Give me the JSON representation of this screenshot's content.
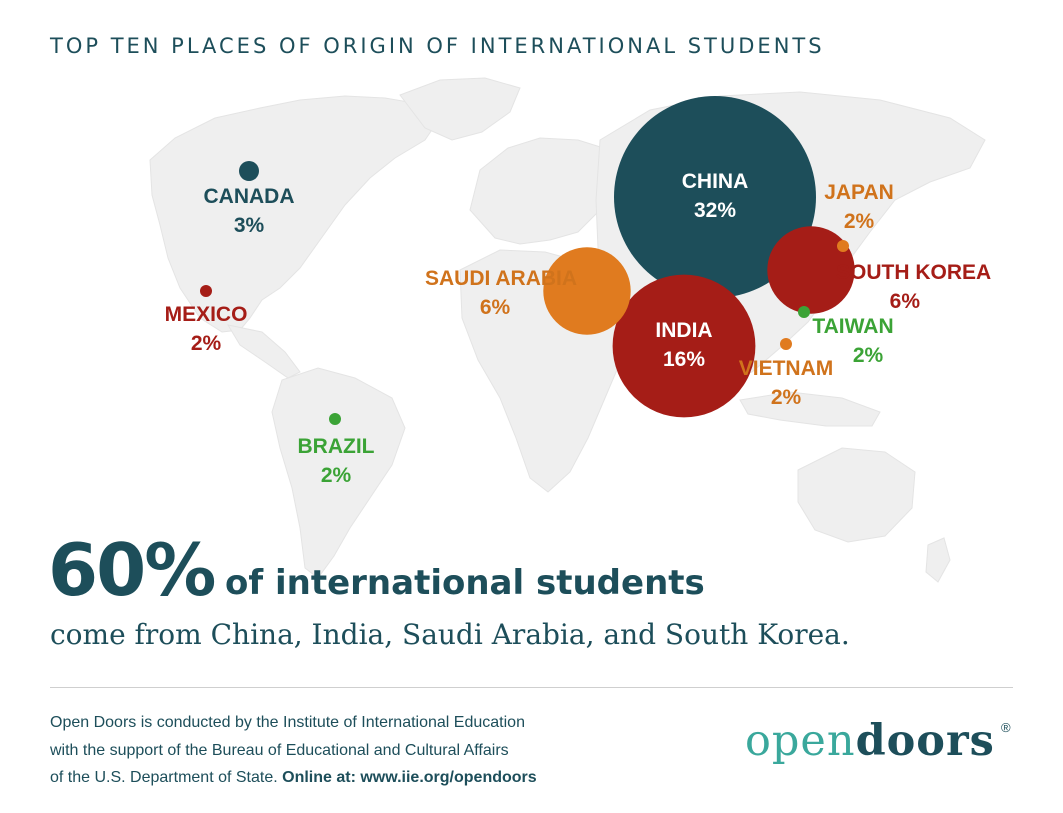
{
  "header": {
    "title": "TOP TEN PLACES OF ORIGIN OF INTERNATIONAL STUDENTS"
  },
  "map_data": {
    "places": [
      {
        "id": "china",
        "name": "CHINA",
        "percent": "32%",
        "value": 32,
        "color": "#1d4e5a"
      },
      {
        "id": "india",
        "name": "INDIA",
        "percent": "16%",
        "value": 16,
        "color": "#a51d17"
      },
      {
        "id": "saudi-arabia",
        "name": "SAUDI ARABIA",
        "percent": "6%",
        "value": 6,
        "color": "#e07b1f"
      },
      {
        "id": "south-korea",
        "name": "SOUTH KOREA",
        "percent": "6%",
        "value": 6,
        "color": "#a51d17"
      },
      {
        "id": "canada",
        "name": "CANADA",
        "percent": "3%",
        "value": 3,
        "color": "#1d4e5a"
      },
      {
        "id": "mexico",
        "name": "MEXICO",
        "percent": "2%",
        "value": 2,
        "color": "#a51d17"
      },
      {
        "id": "brazil",
        "name": "BRAZIL",
        "percent": "2%",
        "value": 2,
        "color": "#3ba336"
      },
      {
        "id": "japan",
        "name": "JAPAN",
        "percent": "2%",
        "value": 2,
        "color": "#e07b1f"
      },
      {
        "id": "taiwan",
        "name": "TAIWAN",
        "percent": "2%",
        "value": 2,
        "color": "#3ba336"
      },
      {
        "id": "vietnam",
        "name": "VIETNAM",
        "percent": "2%",
        "value": 2,
        "color": "#e07b1f"
      }
    ]
  },
  "headline": {
    "big_number": "60%",
    "big_text": "of international students",
    "subtext": "come from China, India, Saudi Arabia, and South Korea."
  },
  "footer": {
    "line1": "Open Doors is conducted by the Institute of International Education",
    "line2": "with the support of the Bureau of Educational and Cultural Affairs",
    "line3": "of the U.S. Department of State.",
    "online": "Online at: www.iie.org/opendoors"
  },
  "logo": {
    "part1": "open",
    "part2": "doors",
    "reg": "®"
  }
}
